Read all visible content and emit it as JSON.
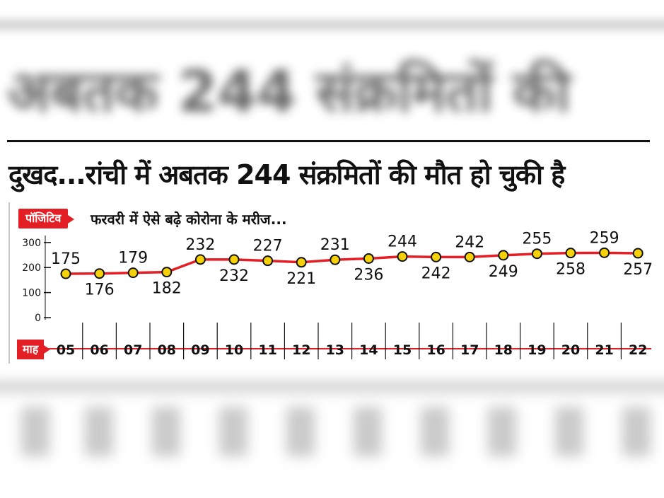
{
  "headline": "दुखद...रांची में अबतक 244 संक्रमितों की मौत हो चुकी है",
  "background_headline": "अबतक 244 संक्रमितों की",
  "chart_tag": "पॉजिटिव",
  "month_tag": "माह",
  "chart_data": {
    "type": "line",
    "title": "फरवरी में ऐसे बढ़े कोरोना के मरीज...",
    "x": [
      "05",
      "06",
      "07",
      "08",
      "09",
      "10",
      "11",
      "12",
      "13",
      "14",
      "15",
      "16",
      "17",
      "18",
      "19",
      "20",
      "21",
      "22"
    ],
    "series": [
      {
        "values": [
          175,
          176,
          179,
          182,
          232,
          232,
          227,
          221,
          231,
          236,
          244,
          242,
          242,
          249,
          255,
          258,
          259,
          257
        ]
      }
    ],
    "yticks": [
      0,
      100,
      200,
      300
    ],
    "colors": {
      "line": "#e31e24",
      "marker_fill": "#f5d10a",
      "marker_stroke": "#111111"
    }
  }
}
